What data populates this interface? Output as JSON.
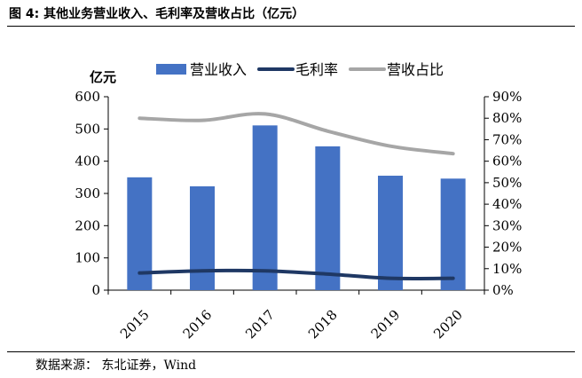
{
  "figure": {
    "title": "图 4: 其他业务营业收入、毛利率及营收占比（亿元）",
    "source": "数据来源： 东北证券，Wind"
  },
  "chart_data": {
    "type": "bar",
    "categories": [
      "2015",
      "2016",
      "2017",
      "2018",
      "2019",
      "2020"
    ],
    "y_left_unit": "亿元",
    "y_left_lim": [
      0,
      600
    ],
    "y_left_ticks": [
      "0",
      "100",
      "200",
      "300",
      "400",
      "500",
      "600"
    ],
    "y_right_lim": [
      0,
      0.9
    ],
    "y_right_ticks": [
      "0%",
      "10%",
      "20%",
      "30%",
      "40%",
      "50%",
      "60%",
      "70%",
      "80%",
      "90%"
    ],
    "grid": false,
    "legend_position": "top",
    "series": [
      {
        "name": "营业收入",
        "kind": "bar",
        "axis": "left",
        "color": "#4472C4",
        "values": [
          350,
          322,
          511,
          446,
          355,
          346
        ]
      },
      {
        "name": "毛利率",
        "kind": "line",
        "axis": "right",
        "color": "#1F3864",
        "values": [
          0.08,
          0.09,
          0.09,
          0.075,
          0.055,
          0.055
        ]
      },
      {
        "name": "营收占比",
        "kind": "line",
        "axis": "right",
        "color": "#A6A6A6",
        "values": [
          0.8,
          0.79,
          0.82,
          0.74,
          0.67,
          0.635
        ]
      }
    ]
  }
}
